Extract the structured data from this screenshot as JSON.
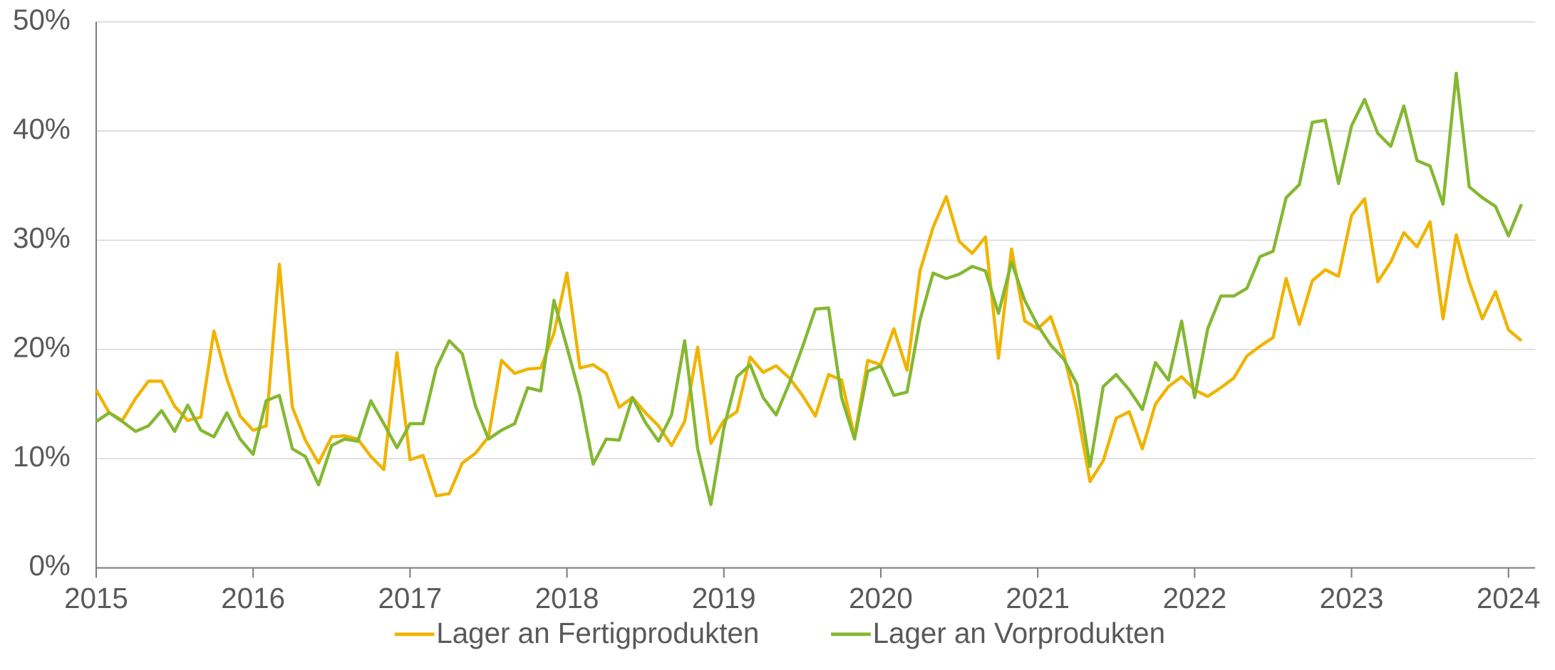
{
  "chart_data": {
    "type": "line",
    "x": [
      2015,
      2015.083,
      2015.167,
      2015.25,
      2015.333,
      2015.417,
      2015.5,
      2015.583,
      2015.667,
      2015.75,
      2015.833,
      2015.917,
      2016,
      2016.083,
      2016.167,
      2016.25,
      2016.333,
      2016.417,
      2016.5,
      2016.583,
      2016.667,
      2016.75,
      2016.833,
      2016.917,
      2017,
      2017.083,
      2017.167,
      2017.25,
      2017.333,
      2017.417,
      2017.5,
      2017.583,
      2017.667,
      2017.75,
      2017.833,
      2017.917,
      2018,
      2018.083,
      2018.167,
      2018.25,
      2018.333,
      2018.417,
      2018.5,
      2018.583,
      2018.667,
      2018.75,
      2018.833,
      2018.917,
      2019,
      2019.083,
      2019.167,
      2019.25,
      2019.333,
      2019.417,
      2019.5,
      2019.583,
      2019.667,
      2019.75,
      2019.833,
      2019.917,
      2020,
      2020.083,
      2020.167,
      2020.25,
      2020.333,
      2020.417,
      2020.5,
      2020.583,
      2020.667,
      2020.75,
      2020.833,
      2020.917,
      2021,
      2021.083,
      2021.167,
      2021.25,
      2021.333,
      2021.417,
      2021.5,
      2021.583,
      2021.667,
      2021.75,
      2021.833,
      2021.917,
      2022,
      2022.083,
      2022.167,
      2022.25,
      2022.333,
      2022.417,
      2022.5,
      2022.583,
      2022.667,
      2022.75,
      2022.833,
      2022.917,
      2023,
      2023.083,
      2023.167,
      2023.25,
      2023.333,
      2023.417,
      2023.5,
      2023.583,
      2023.667,
      2023.75,
      2023.833,
      2023.917,
      2024,
      2024.083
    ],
    "series": [
      {
        "name": "Lager an Fertigprodukten",
        "color": "#f0b400",
        "values": [
          16.3,
          14.2,
          13.5,
          15.5,
          17.1,
          17.1,
          14.8,
          13.5,
          13.8,
          21.7,
          17.3,
          13.9,
          12.6,
          13.0,
          27.8,
          14.7,
          11.7,
          9.6,
          12.0,
          12.1,
          11.8,
          10.2,
          9.0,
          19.7,
          9.9,
          10.3,
          6.6,
          6.8,
          9.6,
          10.5,
          12.0,
          19.0,
          17.8,
          18.2,
          18.3,
          21.5,
          27.0,
          18.3,
          18.6,
          17.8,
          14.7,
          15.6,
          14.2,
          13.0,
          11.2,
          13.4,
          20.2,
          11.4,
          13.5,
          14.3,
          19.3,
          17.9,
          18.5,
          17.4,
          15.8,
          13.9,
          17.7,
          17.2,
          12.0,
          19.0,
          18.6,
          21.9,
          18.1,
          27.2,
          31.2,
          34.0,
          29.9,
          28.8,
          30.3,
          19.2,
          29.2,
          22.6,
          21.9,
          23.0,
          19.5,
          14.5,
          7.9,
          9.8,
          13.7,
          14.3,
          10.9,
          15.0,
          16.6,
          17.5,
          16.3,
          15.7,
          16.5,
          17.4,
          19.4,
          20.3,
          21.1,
          26.5,
          22.3,
          26.3,
          27.3,
          26.7,
          32.3,
          33.8,
          26.2,
          28.0,
          30.7,
          29.4,
          31.7,
          22.8,
          30.5,
          26.2,
          22.8,
          25.3,
          21.8,
          20.8
        ]
      },
      {
        "name": "Lager an Vorprodukten",
        "color": "#84b832",
        "values": [
          13.4,
          14.2,
          13.4,
          12.5,
          13.0,
          14.4,
          12.5,
          14.9,
          12.6,
          12.0,
          14.2,
          11.8,
          10.4,
          15.3,
          15.8,
          10.9,
          10.2,
          7.6,
          11.2,
          11.8,
          11.6,
          15.3,
          13.2,
          11.0,
          13.2,
          13.2,
          18.3,
          20.8,
          19.6,
          14.8,
          11.8,
          12.6,
          13.2,
          16.5,
          16.2,
          24.5,
          20.2,
          15.8,
          9.5,
          11.8,
          11.7,
          15.6,
          13.3,
          11.6,
          14.0,
          20.8,
          10.9,
          5.8,
          12.8,
          17.5,
          18.6,
          15.6,
          14.0,
          16.9,
          20.2,
          23.7,
          23.8,
          15.6,
          11.8,
          18.0,
          18.5,
          15.8,
          16.1,
          22.7,
          27.0,
          26.5,
          26.9,
          27.6,
          27.2,
          23.3,
          28.0,
          24.5,
          22.2,
          20.4,
          19.1,
          16.8,
          9.3,
          16.6,
          17.7,
          16.3,
          14.5,
          18.8,
          17.2,
          22.6,
          15.6,
          21.9,
          24.9,
          24.9,
          25.6,
          28.5,
          29.0,
          33.9,
          35.1,
          40.8,
          41.0,
          35.2,
          40.5,
          42.9,
          39.8,
          38.6,
          42.3,
          37.3,
          36.8,
          33.3,
          45.3,
          34.9,
          33.9,
          33.1,
          30.4,
          33.3
        ]
      }
    ],
    "xlim": [
      2015,
      2024.17
    ],
    "xticks": [
      2015,
      2016,
      2017,
      2018,
      2019,
      2020,
      2021,
      2022,
      2023,
      2024
    ],
    "ylim": [
      0,
      50
    ],
    "yticks": [
      {
        "value": 0,
        "label": "0%"
      },
      {
        "value": 10,
        "label": "10%"
      },
      {
        "value": 20,
        "label": "20%"
      },
      {
        "value": 30,
        "label": "30%"
      },
      {
        "value": 40,
        "label": "40%"
      },
      {
        "value": 50,
        "label": "50%"
      }
    ],
    "grid": true,
    "legend": "bottom"
  }
}
